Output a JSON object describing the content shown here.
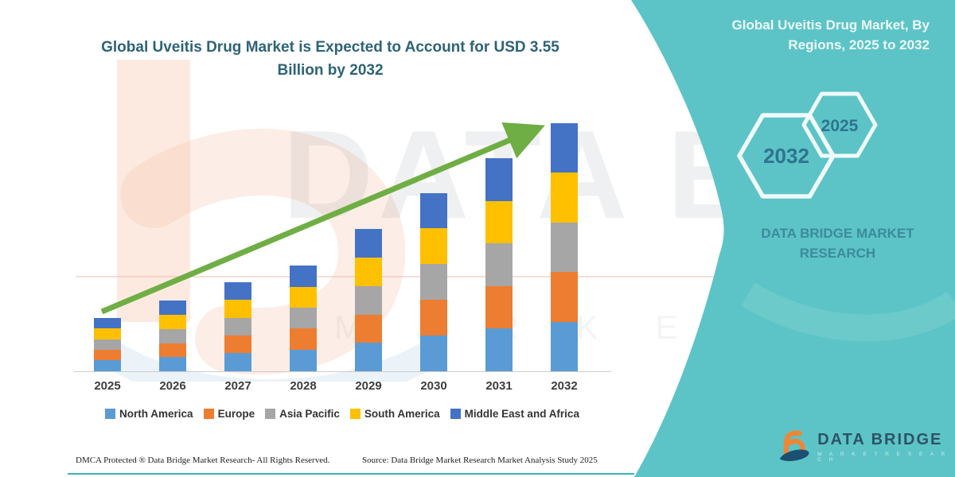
{
  "left_title": "Global Uveitis Drug Market is Expected to Account for USD 3.55 Billion by 2032",
  "right_panel": {
    "title": "Global Uveitis Drug Market, By Regions, 2025 to 2032",
    "hexagon_large_label": "2032",
    "hexagon_small_label": "2025",
    "brand_line1": "DATA BRIDGE MARKET",
    "brand_line2": "RESEARCH",
    "panel_color": "#5cc4c6"
  },
  "watermark": {
    "big_text": "DATA BRIDGE",
    "spaced_text": "M A R K E T   R E S E A R C H"
  },
  "logo": {
    "name": "DATA BRIDGE",
    "sub": "M A R K E T   R E S E A R C H"
  },
  "footer": {
    "dmca": "DMCA Protected ® Data Bridge Market Research- All Rights Reserved.",
    "source": "Source: Data Bridge Market Research Market Analysis Study 2025"
  },
  "chart_data": {
    "type": "bar",
    "stacked": true,
    "title": "Global Uveitis Drug Market is Expected to Account for USD 3.55 Billion by 2032",
    "unit": "USD Billion",
    "categories": [
      "2025",
      "2026",
      "2027",
      "2028",
      "2029",
      "2030",
      "2031",
      "2032"
    ],
    "series": [
      {
        "name": "North America",
        "color": "#5b9bd5",
        "values": [
          0.16,
          0.2,
          0.26,
          0.31,
          0.41,
          0.51,
          0.61,
          0.71
        ]
      },
      {
        "name": "Europe",
        "color": "#ed7d31",
        "values": [
          0.15,
          0.2,
          0.25,
          0.3,
          0.4,
          0.51,
          0.61,
          0.71
        ]
      },
      {
        "name": "Asia Pacific",
        "color": "#a6a6a6",
        "values": [
          0.15,
          0.2,
          0.25,
          0.3,
          0.41,
          0.51,
          0.61,
          0.71
        ]
      },
      {
        "name": "South America",
        "color": "#ffc000",
        "values": [
          0.15,
          0.21,
          0.26,
          0.3,
          0.4,
          0.51,
          0.6,
          0.71
        ]
      },
      {
        "name": "Middle East and Africa",
        "color": "#4472c4",
        "values": [
          0.15,
          0.2,
          0.25,
          0.3,
          0.41,
          0.51,
          0.61,
          0.71
        ]
      }
    ],
    "totals": [
      0.76,
      1.01,
      1.27,
      1.51,
      2.03,
      2.55,
      3.04,
      3.55
    ],
    "ylim": [
      0,
      3.8
    ],
    "grid": false,
    "y_axis_visible": false,
    "legend_position": "bottom",
    "trend_arrow": {
      "show": true,
      "color": "#6fae44"
    }
  }
}
